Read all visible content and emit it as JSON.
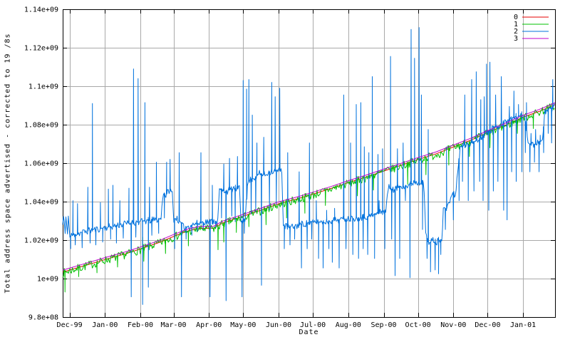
{
  "page": {
    "background": "#ffffff"
  },
  "colors": {
    "border": "#000000",
    "grid": "#a9a9a9",
    "text": "#000000"
  },
  "chart_data": {
    "type": "line",
    "title": "",
    "xlabel": "Date",
    "ylabel": "Total address space advertised - corrected to 19 /8s",
    "grid": true,
    "legend_position": "top-right",
    "value_scale": 1000000000,
    "x_range_days": [
      0,
      431
    ],
    "ylim": [
      0.98,
      1.14
    ],
    "y_ticks": [
      {
        "value": 0.98,
        "label": "9.8e+08"
      },
      {
        "value": 1.0,
        "label": "1e+09"
      },
      {
        "value": 1.02,
        "label": "1.02e+09"
      },
      {
        "value": 1.04,
        "label": "1.04e+09"
      },
      {
        "value": 1.06,
        "label": "1.06e+09"
      },
      {
        "value": 1.08,
        "label": "1.08e+09"
      },
      {
        "value": 1.1,
        "label": "1.1e+09"
      },
      {
        "value": 1.12,
        "label": "1.12e+09"
      },
      {
        "value": 1.14,
        "label": "1.14e+09"
      }
    ],
    "x_ticks": [
      {
        "day": 6,
        "label": "Dec-99"
      },
      {
        "day": 37,
        "label": "Jan-00"
      },
      {
        "day": 68,
        "label": "Feb-00"
      },
      {
        "day": 97,
        "label": "Mar-00"
      },
      {
        "day": 128,
        "label": "Apr-00"
      },
      {
        "day": 158,
        "label": "May-00"
      },
      {
        "day": 189,
        "label": "Jun-00"
      },
      {
        "day": 219,
        "label": "Jul-00"
      },
      {
        "day": 250,
        "label": "Aug-00"
      },
      {
        "day": 281,
        "label": "Sep-00"
      },
      {
        "day": 311,
        "label": "Oct-00"
      },
      {
        "day": 342,
        "label": "Nov-00"
      },
      {
        "day": 372,
        "label": "Dec-00"
      },
      {
        "day": 403,
        "label": "Jan-01"
      }
    ],
    "trend_points": [
      [
        0,
        1.004
      ],
      [
        20,
        1.0075
      ],
      [
        37,
        1.0105
      ],
      [
        55,
        1.0135
      ],
      [
        68,
        1.016
      ],
      [
        85,
        1.0195
      ],
      [
        97,
        1.0225
      ],
      [
        110,
        1.0255
      ],
      [
        120,
        1.0267
      ],
      [
        132,
        1.0268
      ],
      [
        140,
        1.0295
      ],
      [
        158,
        1.033
      ],
      [
        175,
        1.0365
      ],
      [
        189,
        1.0395
      ],
      [
        205,
        1.042
      ],
      [
        219,
        1.0445
      ],
      [
        235,
        1.0475
      ],
      [
        250,
        1.0505
      ],
      [
        266,
        1.0535
      ],
      [
        281,
        1.0565
      ],
      [
        296,
        1.0595
      ],
      [
        311,
        1.0625
      ],
      [
        327,
        1.0655
      ],
      [
        342,
        1.069
      ],
      [
        357,
        1.0725
      ],
      [
        372,
        1.0765
      ],
      [
        388,
        1.0805
      ],
      [
        403,
        1.0845
      ],
      [
        417,
        1.0875
      ],
      [
        431,
        1.091
      ]
    ],
    "series": [
      {
        "name": "0",
        "color": "#e60000",
        "style": "smooth",
        "offset": -0.0006
      },
      {
        "name": "1",
        "color": "#00c000",
        "style": "noisy",
        "offset": -0.001,
        "noise": 0.0022,
        "seed": 7,
        "spikes": [
          [
            2,
            0.993
          ],
          [
            14,
            1.001
          ],
          [
            30,
            1.003
          ],
          [
            48,
            1.006
          ],
          [
            70,
            1.0215
          ],
          [
            71,
            1.009
          ],
          [
            90,
            1.013
          ],
          [
            110,
            1.017
          ],
          [
            136,
            1.015
          ],
          [
            141,
            1.019
          ],
          [
            152,
            1.024
          ],
          [
            163,
            1.027
          ],
          [
            178,
            1.028
          ],
          [
            196,
            1.0315
          ],
          [
            212,
            1.034
          ],
          [
            230,
            1.038
          ],
          [
            258,
            1.043
          ],
          [
            272,
            1.046
          ],
          [
            302,
            1.049
          ],
          [
            318,
            1.054
          ],
          [
            338,
            1.059
          ],
          [
            356,
            1.0635
          ],
          [
            374,
            1.068
          ],
          [
            398,
            1.0755
          ],
          [
            412,
            1.078
          ]
        ]
      },
      {
        "name": "2",
        "color": "#0072dd",
        "style": "noisy",
        "noise": 0.0018,
        "seed": 11,
        "points": [
          [
            0,
            1.028
          ],
          [
            1,
            1.034
          ],
          [
            2,
            1.022
          ],
          [
            3,
            1.033
          ],
          [
            4,
            1.0225
          ],
          [
            5,
            1.0335
          ],
          [
            6,
            1.0215
          ],
          [
            8,
            1.0225
          ],
          [
            20,
            1.0245
          ],
          [
            37,
            1.0265
          ],
          [
            55,
            1.0285
          ],
          [
            68,
            1.0295
          ],
          [
            80,
            1.0305
          ],
          [
            86,
            1.031
          ],
          [
            88,
            1.0455
          ],
          [
            90,
            1.043
          ],
          [
            93,
            1.046
          ],
          [
            96,
            1.0445
          ],
          [
            97,
            1.031
          ],
          [
            100,
            1.0315
          ],
          [
            106,
            1.0265
          ],
          [
            116,
            1.0285
          ],
          [
            126,
            1.0295
          ],
          [
            136,
            1.03
          ],
          [
            137,
            1.046
          ],
          [
            144,
            1.0455
          ],
          [
            150,
            1.047
          ],
          [
            155,
            1.0465
          ],
          [
            156,
            1.0295
          ],
          [
            160,
            1.0315
          ],
          [
            162,
            1.051
          ],
          [
            168,
            1.0525
          ],
          [
            172,
            1.0545
          ],
          [
            178,
            1.054
          ],
          [
            180,
            1.0555
          ],
          [
            188,
            1.056
          ],
          [
            192,
            1.0565
          ],
          [
            193,
            1.0275
          ],
          [
            200,
            1.0265
          ],
          [
            210,
            1.0285
          ],
          [
            220,
            1.029
          ],
          [
            240,
            1.0305
          ],
          [
            256,
            1.0315
          ],
          [
            270,
            1.0325
          ],
          [
            283,
            1.0355
          ],
          [
            285,
            1.0475
          ],
          [
            290,
            1.046
          ],
          [
            296,
            1.0485
          ],
          [
            302,
            1.048
          ],
          [
            308,
            1.0505
          ],
          [
            312,
            1.0495
          ],
          [
            316,
            1.0515
          ],
          [
            318,
            1.0215
          ],
          [
            321,
            1.018
          ],
          [
            324,
            1.0205
          ],
          [
            327,
            1.0185
          ],
          [
            330,
            1.021
          ],
          [
            332,
            1.0195
          ],
          [
            333,
            1.036
          ],
          [
            337,
            1.0365
          ],
          [
            340,
            1.0435
          ],
          [
            344,
            1.044
          ],
          [
            348,
            1.0685
          ],
          [
            356,
            1.07
          ],
          [
            364,
            1.0725
          ],
          [
            372,
            1.0765
          ],
          [
            380,
            1.079
          ],
          [
            388,
            1.0815
          ],
          [
            396,
            1.084
          ],
          [
            404,
            1.0855
          ],
          [
            408,
            1.07
          ],
          [
            412,
            1.0695
          ],
          [
            416,
            1.071
          ],
          [
            420,
            1.0715
          ],
          [
            422,
            1.0865
          ],
          [
            426,
            1.088
          ],
          [
            429,
            1.089
          ],
          [
            431,
            1.0915
          ]
        ],
        "spikes": [
          [
            7,
            1.0155
          ],
          [
            9,
            1.0405
          ],
          [
            11,
            1.0175
          ],
          [
            13,
            1.039
          ],
          [
            17,
            1.016
          ],
          [
            22,
            1.0475
          ],
          [
            24,
            1.0185
          ],
          [
            26,
            1.091
          ],
          [
            29,
            1.0175
          ],
          [
            33,
            1.0395
          ],
          [
            35,
            1.019
          ],
          [
            40,
            1.0465
          ],
          [
            42,
            1.0205
          ],
          [
            44,
            1.0485
          ],
          [
            47,
            1.0185
          ],
          [
            50,
            1.0405
          ],
          [
            53,
            1.021
          ],
          [
            58,
            1.047
          ],
          [
            60,
            0.9905
          ],
          [
            62,
            1.109
          ],
          [
            64,
            1.0215
          ],
          [
            66,
            1.104
          ],
          [
            70,
            0.9865
          ],
          [
            72,
            1.0915
          ],
          [
            75,
            0.9955
          ],
          [
            76,
            1.0475
          ],
          [
            78,
            1.0225
          ],
          [
            82,
            1.0605
          ],
          [
            84,
            1.0235
          ],
          [
            89,
            1.0315
          ],
          [
            91,
            1.0605
          ],
          [
            94,
            1.062
          ],
          [
            98,
            1.0155
          ],
          [
            102,
            1.0655
          ],
          [
            104,
            0.9905
          ],
          [
            108,
            1.0205
          ],
          [
            113,
            1.0225
          ],
          [
            118,
            1.0245
          ],
          [
            121,
            1.0655
          ],
          [
            123,
            1.0255
          ],
          [
            129,
            0.9905
          ],
          [
            131,
            1.0485
          ],
          [
            134,
            1.0265
          ],
          [
            139,
            1.0315
          ],
          [
            141,
            1.0595
          ],
          [
            143,
            0.9885
          ],
          [
            146,
            1.0625
          ],
          [
            148,
            1.0325
          ],
          [
            151,
            1.0295
          ],
          [
            153,
            1.0635
          ],
          [
            157,
            0.9905
          ],
          [
            158,
            1.103
          ],
          [
            159,
            1.0235
          ],
          [
            161,
            1.0985
          ],
          [
            163,
            1.1035
          ],
          [
            165,
            1.0335
          ],
          [
            166,
            1.085
          ],
          [
            169,
            1.0345
          ],
          [
            170,
            1.0705
          ],
          [
            174,
            0.9965
          ],
          [
            176,
            1.0735
          ],
          [
            181,
            1.0355
          ],
          [
            183,
            1.102
          ],
          [
            186,
            1.0945
          ],
          [
            187,
            1.0385
          ],
          [
            190,
            1.099
          ],
          [
            194,
            1.0155
          ],
          [
            197,
            1.0655
          ],
          [
            199,
            1.0175
          ],
          [
            203,
            1.0205
          ],
          [
            207,
            1.0555
          ],
          [
            209,
            1.0055
          ],
          [
            214,
            1.0155
          ],
          [
            216,
            1.0705
          ],
          [
            218,
            1.0205
          ],
          [
            222,
            1.0405
          ],
          [
            224,
            1.0105
          ],
          [
            228,
            1.0055
          ],
          [
            231,
            1.0355
          ],
          [
            233,
            1.0155
          ],
          [
            236,
            1.0085
          ],
          [
            238,
            1.0365
          ],
          [
            242,
            1.0055
          ],
          [
            246,
            1.0955
          ],
          [
            248,
            1.0155
          ],
          [
            252,
            1.0705
          ],
          [
            254,
            1.0125
          ],
          [
            257,
            1.0905
          ],
          [
            259,
            1.0105
          ],
          [
            261,
            1.0915
          ],
          [
            263,
            1.0155
          ],
          [
            264,
            1.0685
          ],
          [
            267,
            1.0125
          ],
          [
            268,
            1.0655
          ],
          [
            271,
            1.105
          ],
          [
            273,
            1.0105
          ],
          [
            276,
            1.0645
          ],
          [
            277,
            1.0405
          ],
          [
            280,
            1.0675
          ],
          [
            282,
            1.0155
          ],
          [
            287,
            1.1155
          ],
          [
            288,
            1.0205
          ],
          [
            291,
            1.0015
          ],
          [
            293,
            1.0675
          ],
          [
            295,
            1.0105
          ],
          [
            298,
            1.0705
          ],
          [
            300,
            1.0405
          ],
          [
            304,
            1.0005
          ],
          [
            305,
            1.1295
          ],
          [
            308,
            1.1145
          ],
          [
            312,
            1.1305
          ],
          [
            314,
            1.0955
          ],
          [
            315,
            1.0255
          ],
          [
            319,
            1.0105
          ],
          [
            320,
            1.0775
          ],
          [
            322,
            1.0035
          ],
          [
            326,
            1.0045
          ],
          [
            329,
            1.0025
          ],
          [
            331,
            1.0125
          ],
          [
            335,
            1.0255
          ],
          [
            336,
            1.0685
          ],
          [
            342,
            1.0305
          ],
          [
            347,
            1.0405
          ],
          [
            350,
            1.0505
          ],
          [
            352,
            1.0955
          ],
          [
            355,
            1.0405
          ],
          [
            358,
            1.1035
          ],
          [
            360,
            1.0455
          ],
          [
            362,
            1.1075
          ],
          [
            365,
            1.0505
          ],
          [
            366,
            1.093
          ],
          [
            368,
            1.0405
          ],
          [
            369,
            1.0945
          ],
          [
            371,
            1.1115
          ],
          [
            373,
            1.0355
          ],
          [
            374,
            1.1125
          ],
          [
            377,
            1.0455
          ],
          [
            379,
            1.0955
          ],
          [
            381,
            1.0505
          ],
          [
            384,
            1.105
          ],
          [
            386,
            1.0355
          ],
          [
            389,
            1.0305
          ],
          [
            391,
            1.0895
          ],
          [
            393,
            1.0555
          ],
          [
            395,
            1.0975
          ],
          [
            397,
            1.0505
          ],
          [
            399,
            1.0905
          ],
          [
            402,
            1.0555
          ],
          [
            405,
            1.0655
          ],
          [
            406,
            1.0915
          ],
          [
            409,
            1.0555
          ],
          [
            410,
            1.0755
          ],
          [
            413,
            1.0605
          ],
          [
            414,
            1.0775
          ],
          [
            417,
            1.0555
          ],
          [
            418,
            1.0745
          ],
          [
            421,
            1.0655
          ],
          [
            425,
            1.0755
          ],
          [
            428,
            1.0705
          ],
          [
            429,
            1.1035
          ]
        ]
      },
      {
        "name": "3",
        "color": "#c000cc",
        "style": "smooth",
        "offset": 0.0004
      }
    ]
  }
}
